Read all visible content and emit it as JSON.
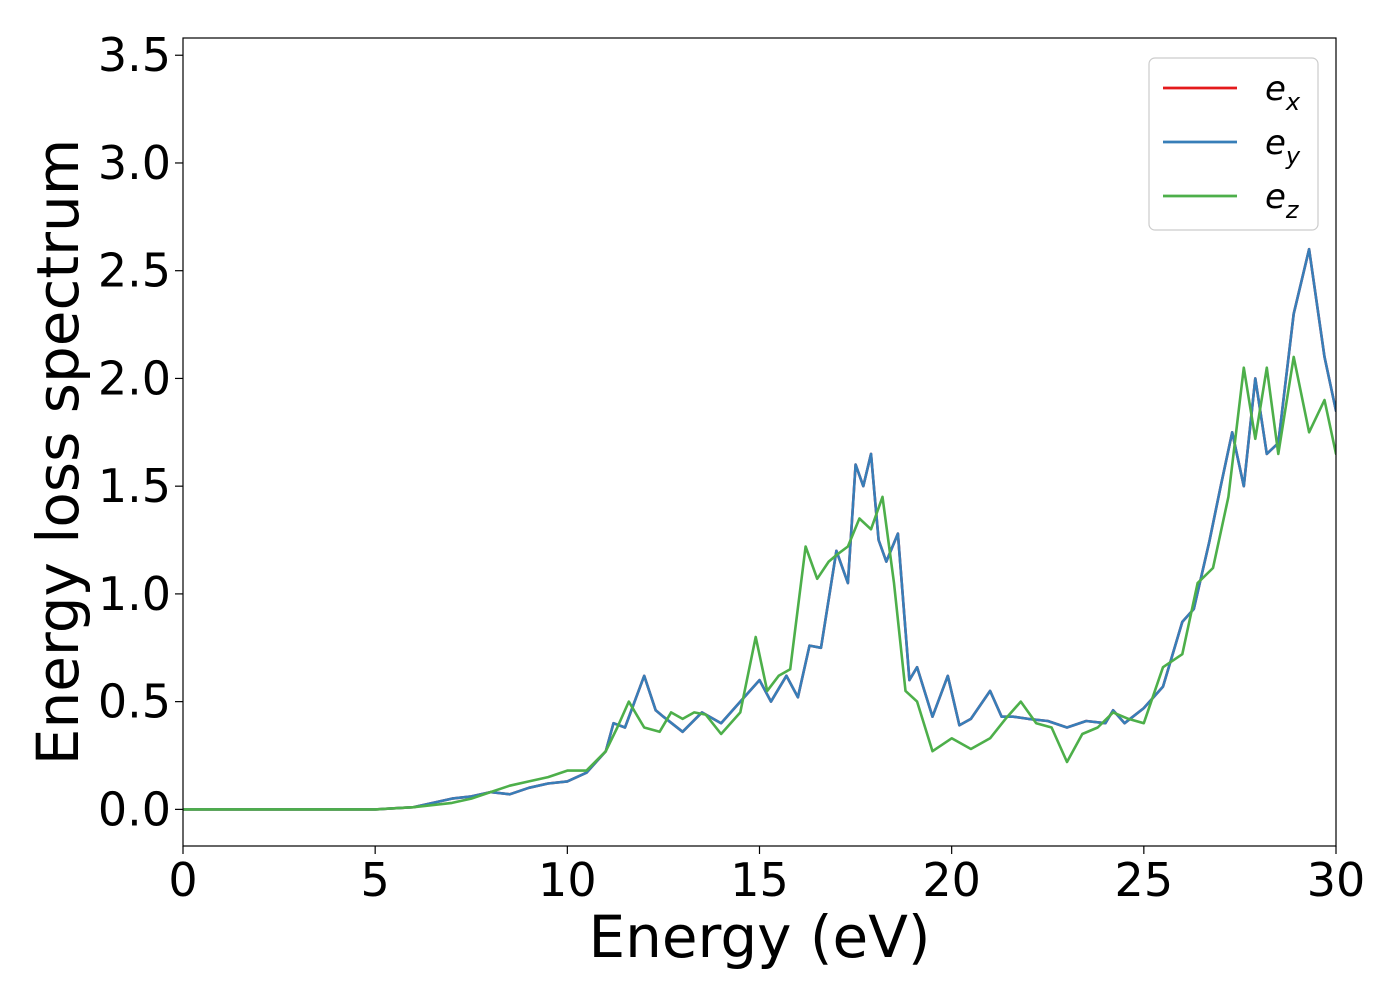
{
  "chart_data": {
    "type": "line",
    "title": "",
    "xlabel": "Energy (eV)",
    "ylabel": "Energy loss spectrum",
    "xlim": [
      0,
      30
    ],
    "ylim": [
      -0.17,
      3.58
    ],
    "xticks": [
      0,
      5,
      10,
      15,
      20,
      25,
      30
    ],
    "xtick_labels": [
      "0",
      "5",
      "10",
      "15",
      "20",
      "25",
      "30"
    ],
    "yticks": [
      0.0,
      0.5,
      1.0,
      1.5,
      2.0,
      2.5,
      3.0,
      3.5
    ],
    "ytick_labels": [
      "0.0",
      "0.5",
      "1.0",
      "1.5",
      "2.0",
      "2.5",
      "3.0",
      "3.5"
    ],
    "grid": false,
    "legend_position": "top-right",
    "series": [
      {
        "name": "e",
        "subscript": "x",
        "color": "#e41a1c",
        "x": [
          0,
          5,
          6,
          6.5,
          7,
          7.5,
          8,
          8.5,
          9,
          9.5,
          10,
          10.5,
          11,
          11.2,
          11.5,
          12,
          12.3,
          12.5,
          13,
          13.5,
          14,
          14.5,
          15,
          15.3,
          15.7,
          16,
          16.3,
          16.6,
          17,
          17.3,
          17.5,
          17.7,
          17.9,
          18.1,
          18.3,
          18.6,
          18.9,
          19.1,
          19.5,
          19.9,
          20.2,
          20.5,
          21,
          21.3,
          21.6,
          22,
          22.5,
          23,
          23.5,
          24,
          24.2,
          24.5,
          25,
          25.5,
          26,
          26.3,
          26.7,
          27,
          27.3,
          27.6,
          27.9,
          28.2,
          28.5,
          28.9,
          29.3,
          29.7,
          30
        ],
        "y": [
          0,
          0,
          0.01,
          0.03,
          0.05,
          0.06,
          0.08,
          0.07,
          0.1,
          0.12,
          0.13,
          0.17,
          0.27,
          0.4,
          0.38,
          0.62,
          0.46,
          0.43,
          0.36,
          0.45,
          0.4,
          0.5,
          0.6,
          0.5,
          0.62,
          0.52,
          0.76,
          0.75,
          1.2,
          1.05,
          1.6,
          1.5,
          1.65,
          1.25,
          1.15,
          1.28,
          0.6,
          0.66,
          0.43,
          0.62,
          0.39,
          0.42,
          0.55,
          0.43,
          0.43,
          0.42,
          0.41,
          0.38,
          0.41,
          0.4,
          0.46,
          0.4,
          0.47,
          0.57,
          0.87,
          0.93,
          1.24,
          1.5,
          1.75,
          1.5,
          2.0,
          1.65,
          1.7,
          2.3,
          2.6,
          2.1,
          1.85
        ]
      },
      {
        "name": "e",
        "subscript": "y",
        "color": "#377eb8",
        "x": [
          0,
          5,
          6,
          6.5,
          7,
          7.5,
          8,
          8.5,
          9,
          9.5,
          10,
          10.5,
          11,
          11.2,
          11.5,
          12,
          12.3,
          12.5,
          13,
          13.5,
          14,
          14.5,
          15,
          15.3,
          15.7,
          16,
          16.3,
          16.6,
          17,
          17.3,
          17.5,
          17.7,
          17.9,
          18.1,
          18.3,
          18.6,
          18.9,
          19.1,
          19.5,
          19.9,
          20.2,
          20.5,
          21,
          21.3,
          21.6,
          22,
          22.5,
          23,
          23.5,
          24,
          24.2,
          24.5,
          25,
          25.5,
          26,
          26.3,
          26.7,
          27,
          27.3,
          27.6,
          27.9,
          28.2,
          28.5,
          28.9,
          29.3,
          29.7,
          30
        ],
        "y": [
          0,
          0,
          0.01,
          0.03,
          0.05,
          0.06,
          0.08,
          0.07,
          0.1,
          0.12,
          0.13,
          0.17,
          0.27,
          0.4,
          0.38,
          0.62,
          0.46,
          0.43,
          0.36,
          0.45,
          0.4,
          0.5,
          0.6,
          0.5,
          0.62,
          0.52,
          0.76,
          0.75,
          1.2,
          1.05,
          1.6,
          1.5,
          1.65,
          1.25,
          1.15,
          1.28,
          0.6,
          0.66,
          0.43,
          0.62,
          0.39,
          0.42,
          0.55,
          0.43,
          0.43,
          0.42,
          0.41,
          0.38,
          0.41,
          0.4,
          0.46,
          0.4,
          0.47,
          0.57,
          0.87,
          0.93,
          1.24,
          1.5,
          1.75,
          1.5,
          2.0,
          1.65,
          1.7,
          2.3,
          2.6,
          2.1,
          1.85
        ]
      },
      {
        "name": "e",
        "subscript": "z",
        "color": "#4daf4a",
        "x": [
          0,
          5,
          6,
          6.5,
          7,
          7.5,
          8,
          8.5,
          9,
          9.5,
          10,
          10.5,
          11,
          11.3,
          11.6,
          12,
          12.4,
          12.7,
          13,
          13.3,
          13.6,
          14,
          14.5,
          14.9,
          15.2,
          15.5,
          15.8,
          16.2,
          16.5,
          16.8,
          17,
          17.3,
          17.6,
          17.9,
          18.2,
          18.5,
          18.8,
          19.1,
          19.5,
          20,
          20.5,
          21,
          21.4,
          21.8,
          22.2,
          22.6,
          23,
          23.4,
          23.8,
          24.2,
          24.6,
          25,
          25.5,
          26,
          26.4,
          26.8,
          27.2,
          27.6,
          27.9,
          28.2,
          28.5,
          28.9,
          29.3,
          29.7,
          30
        ],
        "y": [
          0,
          0,
          0.01,
          0.02,
          0.03,
          0.05,
          0.08,
          0.11,
          0.13,
          0.15,
          0.18,
          0.18,
          0.27,
          0.38,
          0.5,
          0.38,
          0.36,
          0.45,
          0.42,
          0.45,
          0.44,
          0.35,
          0.45,
          0.8,
          0.55,
          0.62,
          0.65,
          1.22,
          1.07,
          1.15,
          1.18,
          1.22,
          1.35,
          1.3,
          1.45,
          1.05,
          0.55,
          0.5,
          0.27,
          0.33,
          0.28,
          0.33,
          0.42,
          0.5,
          0.4,
          0.38,
          0.22,
          0.35,
          0.38,
          0.45,
          0.42,
          0.4,
          0.66,
          0.72,
          1.05,
          1.12,
          1.45,
          2.05,
          1.72,
          2.05,
          1.65,
          2.1,
          1.75,
          1.9,
          1.65
        ]
      }
    ]
  }
}
